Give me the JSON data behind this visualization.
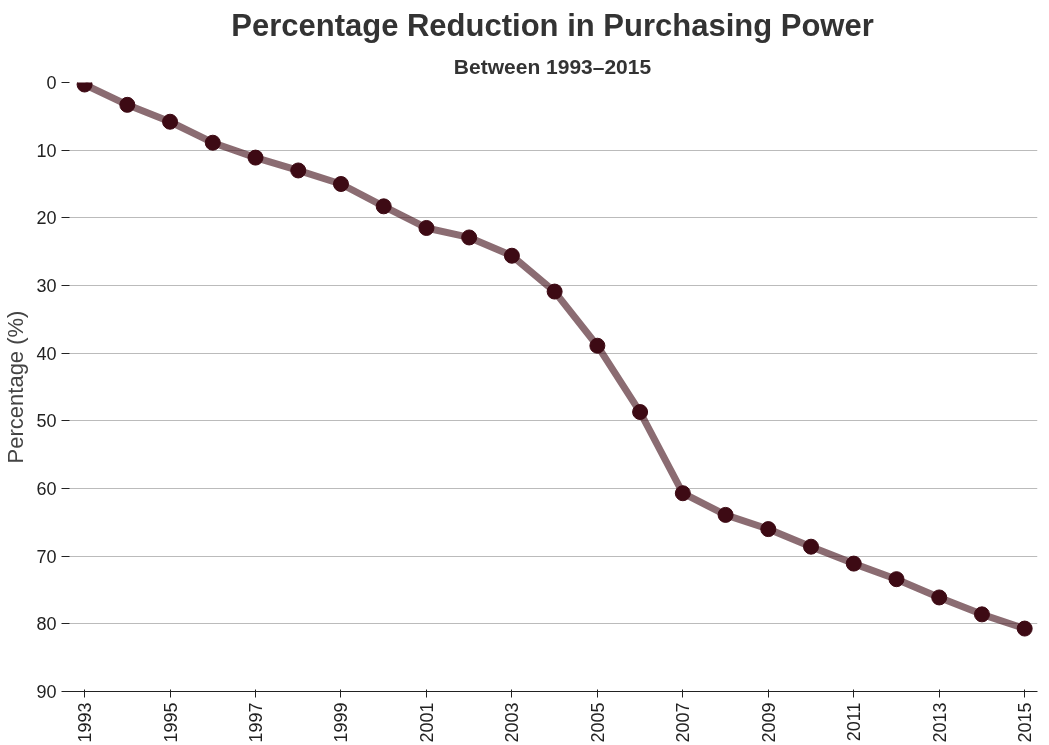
{
  "chart_data": {
    "type": "line",
    "title": "Percentage Reduction in Purchasing Power",
    "subtitle": "Between 1993–2015",
    "ylabel": "Percentage (%)",
    "x": [
      1993,
      1994,
      1995,
      1996,
      1997,
      1998,
      1999,
      2000,
      2001,
      2002,
      2003,
      2004,
      2005,
      2006,
      2007,
      2008,
      2009,
      2010,
      2011,
      2012,
      2013,
      2014,
      2015
    ],
    "series": [
      {
        "color": "#3d0a14",
        "values": [
          0.3,
          3.3,
          5.8,
          8.9,
          11.1,
          13.0,
          15.0,
          18.3,
          21.5,
          22.9,
          25.6,
          30.9,
          38.9,
          48.7,
          60.7,
          63.9,
          66.0,
          68.6,
          71.1,
          73.4,
          76.1,
          78.6,
          80.7
        ]
      }
    ],
    "xlim": [
      1992.6,
      2015.3
    ],
    "xticks": [
      1993,
      1995,
      1997,
      1999,
      2001,
      2003,
      2005,
      2007,
      2009,
      2011,
      2013,
      2015
    ],
    "ylim": [
      90,
      0
    ],
    "yticks": [
      0,
      10,
      20,
      30,
      40,
      50,
      60,
      70,
      80,
      90
    ],
    "grid": "y",
    "marker": "circle",
    "line_style": "solid"
  }
}
